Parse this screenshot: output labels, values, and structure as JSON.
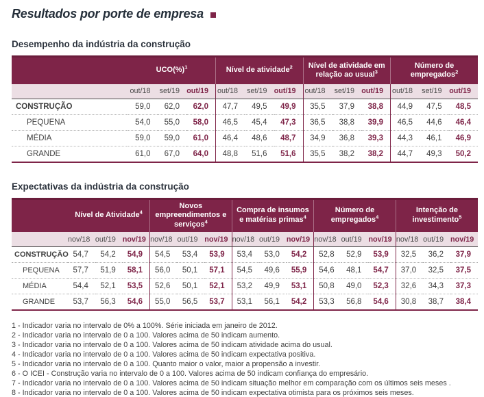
{
  "page": {
    "title": "Resultados por porte de empresa"
  },
  "colors": {
    "header_maroon": "#7E2448",
    "header_maroon_dark": "#6B1D3C",
    "subheader_pink": "#ECDEE4",
    "accent_value_text": "#7E2448",
    "body_text": "#3F3F3F",
    "title_text": "#242E39"
  },
  "table1": {
    "section_title": "Desempenho da indústria da construção",
    "groups": [
      {
        "label": "UCO(%)",
        "sup": "1"
      },
      {
        "label": "Nível de atividade",
        "sup": "2"
      },
      {
        "label": "Nível de atividade em relação ao usual",
        "sup": "3"
      },
      {
        "label": "Número de empregados",
        "sup": "2"
      }
    ],
    "periods": [
      "out/18",
      "set/19",
      "out/19"
    ],
    "rows": [
      {
        "label": "CONSTRUÇÃO",
        "bold": true,
        "values": [
          "59,0",
          "62,0",
          "62,0",
          "47,7",
          "49,5",
          "49,9",
          "35,5",
          "37,9",
          "38,8",
          "44,9",
          "47,5",
          "48,5"
        ]
      },
      {
        "label": "PEQUENA",
        "bold": false,
        "values": [
          "54,0",
          "55,0",
          "58,0",
          "46,5",
          "45,4",
          "47,3",
          "36,5",
          "38,8",
          "39,9",
          "46,5",
          "44,6",
          "46,4"
        ]
      },
      {
        "label": "MÉDIA",
        "bold": false,
        "values": [
          "59,0",
          "59,0",
          "61,0",
          "46,4",
          "48,6",
          "48,7",
          "34,9",
          "36,8",
          "39,3",
          "44,3",
          "46,1",
          "46,9"
        ]
      },
      {
        "label": "GRANDE",
        "bold": false,
        "values": [
          "61,0",
          "67,0",
          "64,0",
          "48,8",
          "51,6",
          "51,6",
          "35,5",
          "38,2",
          "38,2",
          "44,7",
          "49,3",
          "50,2"
        ]
      }
    ]
  },
  "table2": {
    "section_title": "Expectativas da indústria da construção",
    "groups": [
      {
        "label": "Nível de Atividade",
        "sup": "4"
      },
      {
        "label": "Novos empreendimentos e serviços",
        "sup": "4"
      },
      {
        "label": "Compra de insumos e matérias primas",
        "sup": "4"
      },
      {
        "label": "Número de empregados",
        "sup": "4"
      },
      {
        "label": "Intenção de investimento",
        "sup": "5"
      }
    ],
    "periods": [
      "nov/18",
      "out/19",
      "nov/19"
    ],
    "rows": [
      {
        "label": "CONSTRUÇÃO",
        "bold": true,
        "values": [
          "54,7",
          "54,2",
          "54,9",
          "54,5",
          "53,4",
          "53,9",
          "53,4",
          "53,0",
          "54,2",
          "52,8",
          "52,9",
          "53,9",
          "32,5",
          "36,2",
          "37,9"
        ]
      },
      {
        "label": "PEQUENA",
        "bold": false,
        "values": [
          "57,7",
          "51,9",
          "58,1",
          "56,0",
          "50,1",
          "57,1",
          "54,5",
          "49,6",
          "55,9",
          "54,6",
          "48,1",
          "54,7",
          "37,0",
          "32,5",
          "37,5"
        ]
      },
      {
        "label": "MÉDIA",
        "bold": false,
        "values": [
          "54,4",
          "52,1",
          "53,5",
          "52,6",
          "50,1",
          "52,1",
          "53,2",
          "49,9",
          "53,1",
          "50,8",
          "49,0",
          "52,3",
          "32,6",
          "34,3",
          "37,3"
        ]
      },
      {
        "label": "GRANDE",
        "bold": false,
        "values": [
          "53,7",
          "56,3",
          "54,6",
          "55,0",
          "56,5",
          "53,7",
          "53,1",
          "56,1",
          "54,2",
          "53,3",
          "56,8",
          "54,6",
          "30,8",
          "38,7",
          "38,4"
        ]
      }
    ]
  },
  "footnotes": [
    "1 - Indicador varia no intervalo de 0% a 100%. Série iniciada em janeiro de 2012.",
    "2 - Indicador varia no intervalo de 0 a 100. Valores acima de 50 indicam aumento.",
    "3 - Indicador varia no intervalo de 0 a 100. Valores acima de 50 indicam atividade acima do usual.",
    "4 - Indicador varia no intervalo de 0 a 100. Valores acima de 50 indicam expectativa positiva.",
    "5 - Indicador varia no intervalo de 0 a 100. Quanto maior o valor, maior a propensão a investir.",
    "6 - O ICEI - Construção varia no intervalo de 0 a 100. Valores acima de 50 indicam confiança do empresário.",
    "7 - Indicador varia no intervalo de 0 a 100. Valores acima de 50 indicam situação melhor em comparação com os últimos seis meses .",
    "8 - Indicador varia no intervalo de 0 a 100. Valores acima de 50 indicam expectativa otimista para os próximos seis meses."
  ]
}
